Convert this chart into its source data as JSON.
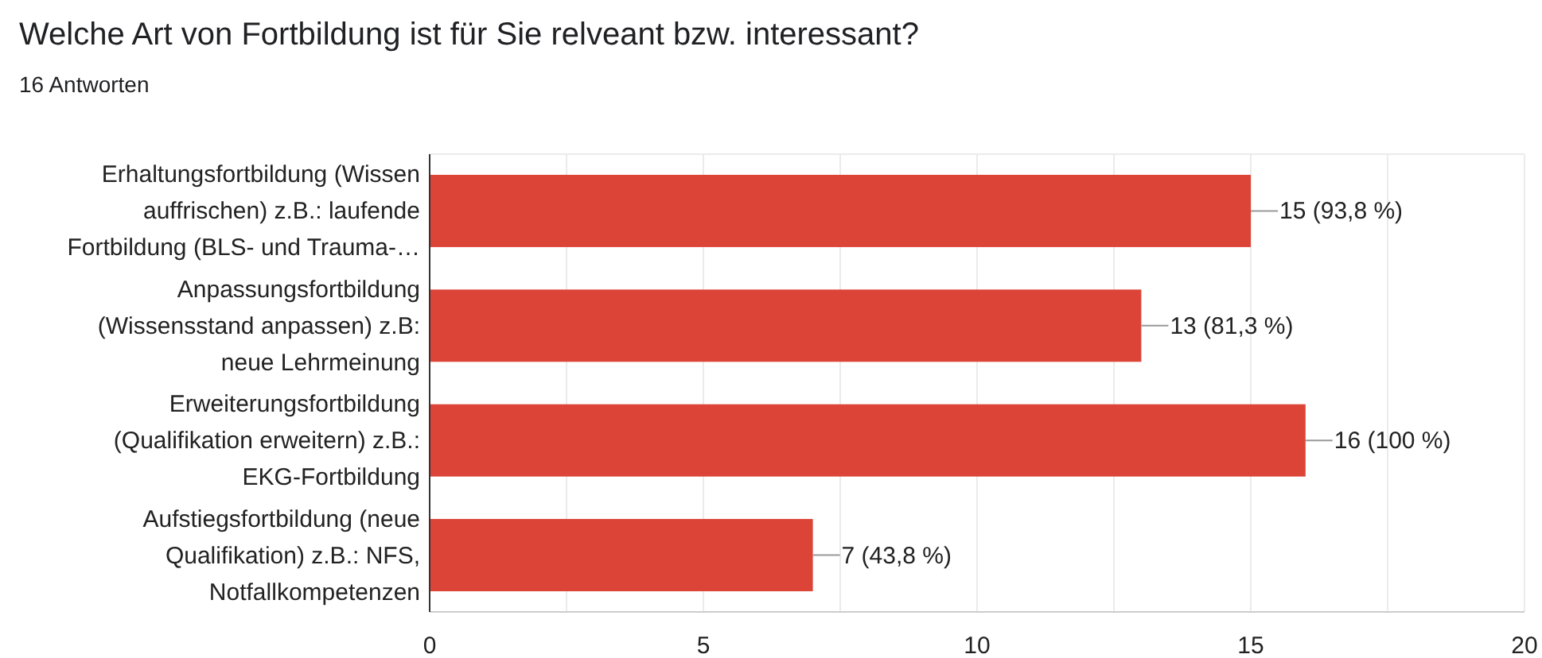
{
  "chart_data": {
    "type": "bar",
    "orientation": "horizontal",
    "title": "Welche Art von Fortbildung ist für Sie relveant bzw. interessant?",
    "subtitle": "16 Antworten",
    "categories": [
      "Erhaltungsfortbildung (Wissen auffrischen) z.B.: laufende Fortbildung (BLS- und Trauma-…",
      "Anpassungsfortbildung (Wissensstand anpassen) z.B: neue Lehrmeinung",
      "Erweiterungsfortbildung (Qualifikation erweitern) z.B.: EKG-Fortbildung",
      "Aufstiegsfortbildung (neue Qualifikation) z.B.: NFS, Notfallkompetenzen"
    ],
    "values": [
      15,
      13,
      16,
      7
    ],
    "value_labels": [
      "15 (93,8 %)",
      "13 (81,3 %)",
      "16 (100 %)",
      "7 (43,8 %)"
    ],
    "color": "#dc4437",
    "xlim": [
      0,
      20
    ],
    "xticks": [
      0,
      {
        "value": 2.5,
        "label": null
      },
      5,
      {
        "value": 7.5,
        "label": null
      },
      10,
      {
        "value": 12.5,
        "label": null
      },
      15,
      {
        "value": 17.5,
        "label": null
      },
      20
    ],
    "grid": "x"
  }
}
